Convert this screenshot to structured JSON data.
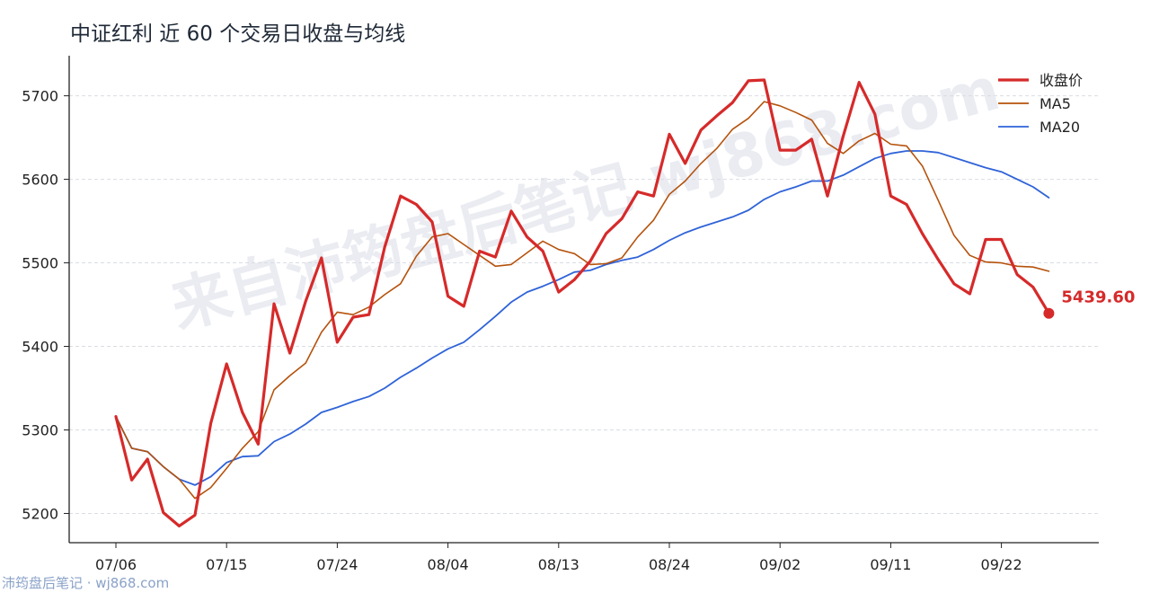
{
  "title": "中证红利 近 60 个交易日收盘与均线",
  "watermark": "来自沛筠盘后笔记 wj868.com",
  "footer": "沛筠盘后笔记 · wj868.com",
  "colors": {
    "close": "#d62a2a",
    "ma5": "#b5520c",
    "ma20": "#2f63d8",
    "last_label": "#d62a2a"
  },
  "chart_data": {
    "type": "line",
    "title": "中证红利 近 60 个交易日收盘与均线",
    "xlabel": "",
    "ylabel": "",
    "ylim": [
      5165,
      5748
    ],
    "y_ticks": [
      5200,
      5300,
      5400,
      5500,
      5600,
      5700
    ],
    "x_tick_labels": [
      "07/06",
      "07/15",
      "07/24",
      "08/04",
      "08/13",
      "08/24",
      "09/02",
      "09/11",
      "09/22"
    ],
    "x_tick_indices": [
      0,
      7,
      14,
      21,
      28,
      35,
      42,
      49,
      56
    ],
    "grid": "horizontal dashed",
    "legend_position": "top-right",
    "last_value_label": "5439.60",
    "series": [
      {
        "name": "收盘价",
        "values": [
          5316,
          5240,
          5265,
          5201,
          5185,
          5198,
          5308,
          5379,
          5321,
          5283,
          5451,
          5392,
          5454,
          5506,
          5405,
          5435,
          5438,
          5519,
          5580,
          5570,
          5549,
          5460,
          5448,
          5514,
          5507,
          5562,
          5531,
          5514,
          5465,
          5480,
          5502,
          5535,
          5553,
          5585,
          5580,
          5654,
          5619,
          5659,
          5676,
          5692,
          5718,
          5719,
          5635,
          5635,
          5648,
          5580,
          5652,
          5716,
          5678,
          5580,
          5570,
          5535,
          5504,
          5475,
          5463,
          5528,
          5528,
          5486,
          5471,
          5439.6
        ]
      },
      {
        "name": "MA5",
        "values": [
          5316,
          5278,
          5274,
          5256,
          5241,
          5218,
          5231,
          5254,
          5278,
          5298,
          5348,
          5365,
          5380,
          5417,
          5441,
          5438,
          5447,
          5462,
          5475,
          5508,
          5531,
          5535,
          5522,
          5509,
          5496,
          5498,
          5512,
          5526,
          5516,
          5511,
          5498,
          5499,
          5506,
          5531,
          5551,
          5582,
          5598,
          5619,
          5637,
          5660,
          5673,
          5693,
          5688,
          5680,
          5671,
          5643,
          5631,
          5646,
          5655,
          5642,
          5640,
          5616,
          5575,
          5533,
          5509,
          5501,
          5500,
          5496,
          5495,
          5490
        ]
      },
      {
        "name": "MA20",
        "values": [
          5316,
          5278,
          5274,
          5256,
          5241,
          5234,
          5244,
          5261,
          5268,
          5269,
          5286,
          5295,
          5307,
          5321,
          5327,
          5334,
          5340,
          5350,
          5363,
          5374,
          5386,
          5397,
          5405,
          5420,
          5436,
          5453,
          5465,
          5472,
          5480,
          5489,
          5491,
          5498,
          5503,
          5507,
          5516,
          5527,
          5536,
          5543,
          5549,
          5555,
          5563,
          5576,
          5585,
          5591,
          5598,
          5598,
          5605,
          5615,
          5625,
          5631,
          5634,
          5634,
          5632,
          5626,
          5620,
          5614,
          5609,
          5600,
          5591,
          5578
        ]
      }
    ]
  }
}
